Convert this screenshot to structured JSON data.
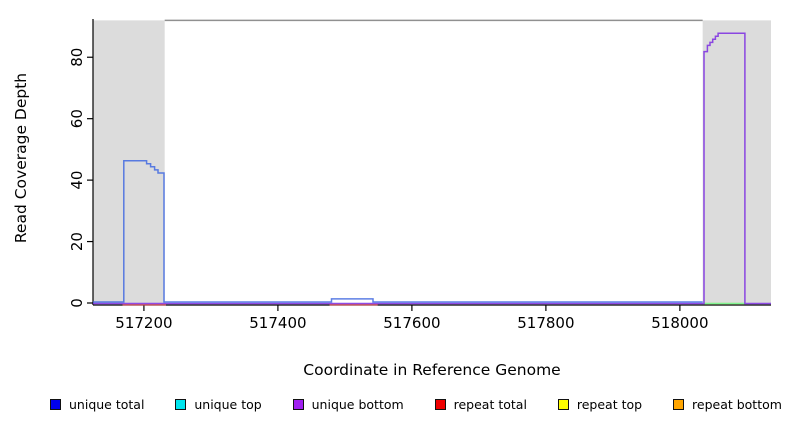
{
  "chart_data": {
    "type": "line",
    "title": "",
    "xlabel": "Coordinate in Reference Genome",
    "ylabel": "Read Coverage Depth",
    "xlim": [
      517124,
      518136
    ],
    "ylim": [
      0,
      94.4
    ],
    "xticks": [
      517200,
      517400,
      517600,
      517800,
      518000
    ],
    "yticks": [
      0,
      20,
      40,
      60,
      80
    ],
    "grid": false,
    "legend_position": "bottom",
    "shaded_regions": [
      {
        "x0": 517124,
        "x1": 517231,
        "color": "#dcdcdc"
      },
      {
        "x0": 518034,
        "x1": 518136,
        "color": "#dcdcdc"
      }
    ],
    "boundary_line": {
      "x0": 517231,
      "x1": 518034,
      "y": 92,
      "color": "#909090"
    },
    "series": [
      {
        "name": "unique total",
        "legend_color": "#0000EE",
        "line_color": "#4169E1",
        "segments": [
          [
            [
              517124,
              0
            ],
            [
              517170,
              0
            ],
            [
              517170,
              46
            ],
            [
              517204,
              46
            ],
            [
              517204,
              45
            ],
            [
              517210,
              45
            ],
            [
              517210,
              44
            ],
            [
              517216,
              44
            ],
            [
              517216,
              43
            ],
            [
              517221,
              43
            ],
            [
              517221,
              42
            ],
            [
              517230,
              42
            ],
            [
              517230,
              0
            ],
            [
              517480,
              0
            ],
            [
              517480,
              1
            ],
            [
              517542,
              1
            ],
            [
              517542,
              0
            ],
            [
              518034,
              0
            ]
          ]
        ]
      },
      {
        "name": "unique top",
        "legend_color": "#00E5EE",
        "line_color": "#00FFFF",
        "segments": [
          [
            [
              518036,
              0
            ],
            [
              518097,
              0
            ]
          ]
        ]
      },
      {
        "name": "unique bottom",
        "legend_color": "#A020F0",
        "line_color": "#7B2BE2",
        "segments": [
          [
            [
              517124,
              0
            ],
            [
              518036,
              0
            ],
            [
              518036,
              82
            ],
            [
              518041,
              82
            ],
            [
              518041,
              84
            ],
            [
              518045,
              84
            ],
            [
              518045,
              85
            ],
            [
              518049,
              85
            ],
            [
              518049,
              86
            ],
            [
              518053,
              86
            ],
            [
              518053,
              87
            ],
            [
              518057,
              87
            ],
            [
              518057,
              88
            ],
            [
              518097,
              88
            ],
            [
              518097,
              0
            ],
            [
              518136,
              0
            ]
          ]
        ]
      },
      {
        "name": "repeat total",
        "legend_color": "#EE0000",
        "line_color": "#EC5A5A",
        "segments": [
          [
            [
              517168,
              0
            ],
            [
              517233,
              0
            ]
          ],
          [
            [
              517477,
              0
            ],
            [
              517549,
              0
            ]
          ]
        ]
      },
      {
        "name": "repeat top",
        "legend_color": "#FFFF00",
        "line_color": "#FFE800",
        "segments": [
          [
            [
              518036,
              0
            ],
            [
              518097,
              0
            ]
          ]
        ]
      },
      {
        "name": "repeat bottom",
        "legend_color": "#FFA500",
        "line_color": "#FFA500",
        "segments": []
      }
    ]
  }
}
